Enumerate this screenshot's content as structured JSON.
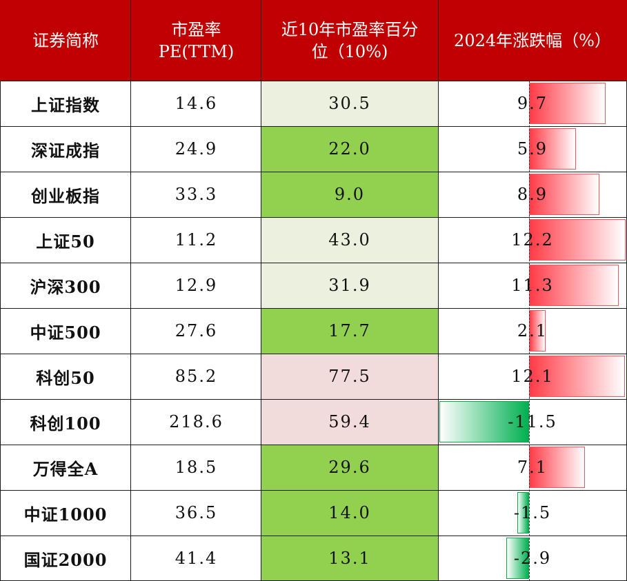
{
  "header": {
    "col1": "证券简称",
    "col2_line1": "市盈率",
    "col2_line2": "PE(TTM)",
    "col3_line1": "近10年市盈率百分",
    "col3_line2": "位（10%)",
    "col4": "2024年涨跌幅（%）"
  },
  "colors": {
    "header_bg": "#c00000",
    "pct_low": "#92d050",
    "pct_mid": "#ebf1de",
    "pct_high": "#f2dcdb",
    "bar_positive": "#ff3b47",
    "bar_negative": "#00b050"
  },
  "rows": [
    {
      "name": "上证指数",
      "pe": "14.6",
      "pct": "30.5",
      "pct_level": "mid",
      "chg": "9.7",
      "chg_value": 9.7
    },
    {
      "name": "深证成指",
      "pe": "24.9",
      "pct": "22.0",
      "pct_level": "low",
      "chg": "5.9",
      "chg_value": 5.9
    },
    {
      "name": "创业板指",
      "pe": "33.3",
      "pct": "9.0",
      "pct_level": "low",
      "chg": "8.9",
      "chg_value": 8.9
    },
    {
      "name": "上证50",
      "pe": "11.2",
      "pct": "43.0",
      "pct_level": "mid",
      "chg": "12.2",
      "chg_value": 12.2
    },
    {
      "name": "沪深300",
      "pe": "12.9",
      "pct": "31.9",
      "pct_level": "mid",
      "chg": "11.3",
      "chg_value": 11.3
    },
    {
      "name": "中证500",
      "pe": "27.6",
      "pct": "17.7",
      "pct_level": "low",
      "chg": "2.1",
      "chg_value": 2.1
    },
    {
      "name": "科创50",
      "pe": "85.2",
      "pct": "77.5",
      "pct_level": "high",
      "chg": "12.1",
      "chg_value": 12.1
    },
    {
      "name": "科创100",
      "pe": "218.6",
      "pct": "59.4",
      "pct_level": "high",
      "chg": "-11.5",
      "chg_value": -11.5
    },
    {
      "name": "万得全A",
      "pe": "18.5",
      "pct": "29.6",
      "pct_level": "low",
      "chg": "7.1",
      "chg_value": 7.1
    },
    {
      "name": "中证1000",
      "pe": "36.5",
      "pct": "14.0",
      "pct_level": "low",
      "chg": "-1.5",
      "chg_value": -1.5
    },
    {
      "name": "国证2000",
      "pe": "41.4",
      "pct": "13.1",
      "pct_level": "low",
      "chg": "-2.9",
      "chg_value": -2.9
    }
  ]
}
